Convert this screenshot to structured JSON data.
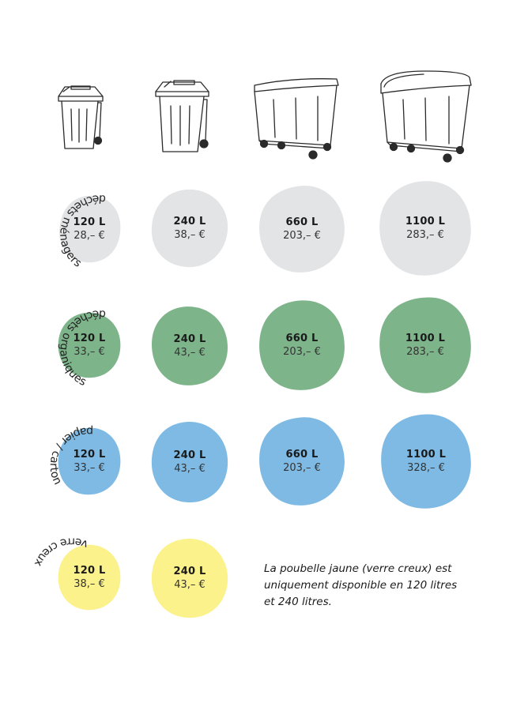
{
  "colors": {
    "grey": "#e3e4e6",
    "green": "#7db48a",
    "blue": "#7ebae4",
    "yellow": "#fbf28b",
    "line": "#2a2a2a"
  },
  "bins": [
    {
      "name": "bin-120-icon"
    },
    {
      "name": "bin-240-icon"
    },
    {
      "name": "container-660-icon"
    },
    {
      "name": "container-1100-icon"
    }
  ],
  "rows": [
    {
      "label": "déchets ménagers",
      "color_key": "grey",
      "cells": [
        {
          "volume": "120 L",
          "price": "28,– €"
        },
        {
          "volume": "240 L",
          "price": "38,– €"
        },
        {
          "volume": "660 L",
          "price": "203,– €"
        },
        {
          "volume": "1100 L",
          "price": "283,– €"
        }
      ]
    },
    {
      "label": "déchets organiques",
      "color_key": "green",
      "cells": [
        {
          "volume": "120 L",
          "price": "33,– €"
        },
        {
          "volume": "240 L",
          "price": "43,– €"
        },
        {
          "volume": "660 L",
          "price": "203,– €"
        },
        {
          "volume": "1100 L",
          "price": "283,– €"
        }
      ]
    },
    {
      "label": "papier / carton",
      "color_key": "blue",
      "cells": [
        {
          "volume": "120 L",
          "price": "33,– €"
        },
        {
          "volume": "240 L",
          "price": "43,– €"
        },
        {
          "volume": "660 L",
          "price": "203,– €"
        },
        {
          "volume": "1100 L",
          "price": "328,– €"
        }
      ]
    },
    {
      "label": "verre creux",
      "color_key": "yellow",
      "cells": [
        {
          "volume": "120 L",
          "price": "38,– €"
        },
        {
          "volume": "240 L",
          "price": "43,– €"
        }
      ]
    }
  ],
  "note": "La poubelle jaune (verre creux) est uniquement disponible en 120 litres et 240 litres."
}
